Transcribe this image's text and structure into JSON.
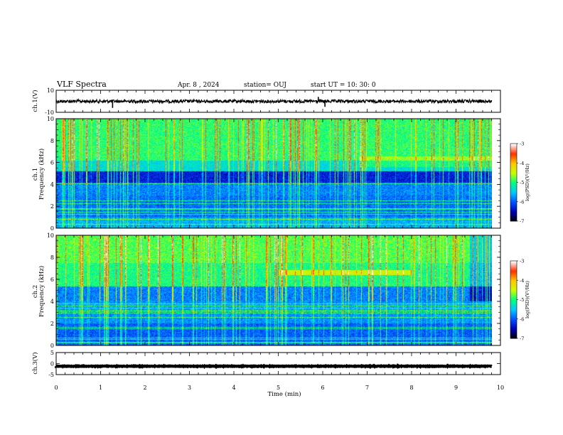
{
  "header": {
    "title": "VLF Spectra",
    "date": "Apr. 8  , 2024",
    "station": "station= OUJ",
    "start_ut": "start  UT  =   10: 30: 0"
  },
  "chart_data": [
    {
      "type": "line",
      "name": "ch1-waveform",
      "ylabel": "ch.1(V)",
      "ylim": [
        -10,
        10
      ],
      "yticks": [
        "10",
        "-10"
      ],
      "baseline": 0,
      "spikes": [
        {
          "x": 1.27,
          "y": -6
        },
        {
          "x": 5.9,
          "y": 4
        },
        {
          "x": 6.05,
          "y": -5
        }
      ]
    },
    {
      "type": "heatmap",
      "name": "ch1-spectrogram",
      "ylabel": "ch.1\nFrequency (kHz)",
      "ylim": [
        0,
        10
      ],
      "yticks": [
        "0",
        "2",
        "4",
        "6",
        "8",
        "10"
      ],
      "colorbar": {
        "label": "log(PSD)(V²/Hz)",
        "range": [
          -7,
          -3
        ],
        "ticks": [
          "-3",
          "-4",
          "-5",
          "-6",
          "-7"
        ]
      }
    },
    {
      "type": "heatmap",
      "name": "ch2-spectrogram",
      "ylabel": "ch.2\nFrequency (kHz)",
      "ylim": [
        0,
        10
      ],
      "yticks": [
        "0",
        "2",
        "4",
        "6",
        "8",
        "10"
      ],
      "colorbar": {
        "label": "log(PSD)(V²/Hz)",
        "range": [
          -7,
          -3
        ],
        "ticks": [
          "-3",
          "-4",
          "-5",
          "-6",
          "-7"
        ]
      }
    },
    {
      "type": "line",
      "name": "ch3-waveform",
      "ylabel": "ch.3(V)",
      "ylim": [
        -5,
        5
      ],
      "yticks": [
        "5",
        "0",
        "-5"
      ],
      "baseline": -1.2
    }
  ],
  "xaxis": {
    "label": "Time  (min)",
    "range": [
      0,
      10
    ],
    "ticks": [
      "0",
      "1",
      "2",
      "3",
      "4",
      "5",
      "6",
      "7",
      "8",
      "9",
      "10"
    ],
    "data_end": 9.8
  },
  "colors": {
    "cmap": [
      "#000000",
      "#0000b0",
      "#0050ff",
      "#00c8ff",
      "#00ff80",
      "#c8ff00",
      "#ffc800",
      "#ff3000",
      "#ffffff"
    ]
  }
}
